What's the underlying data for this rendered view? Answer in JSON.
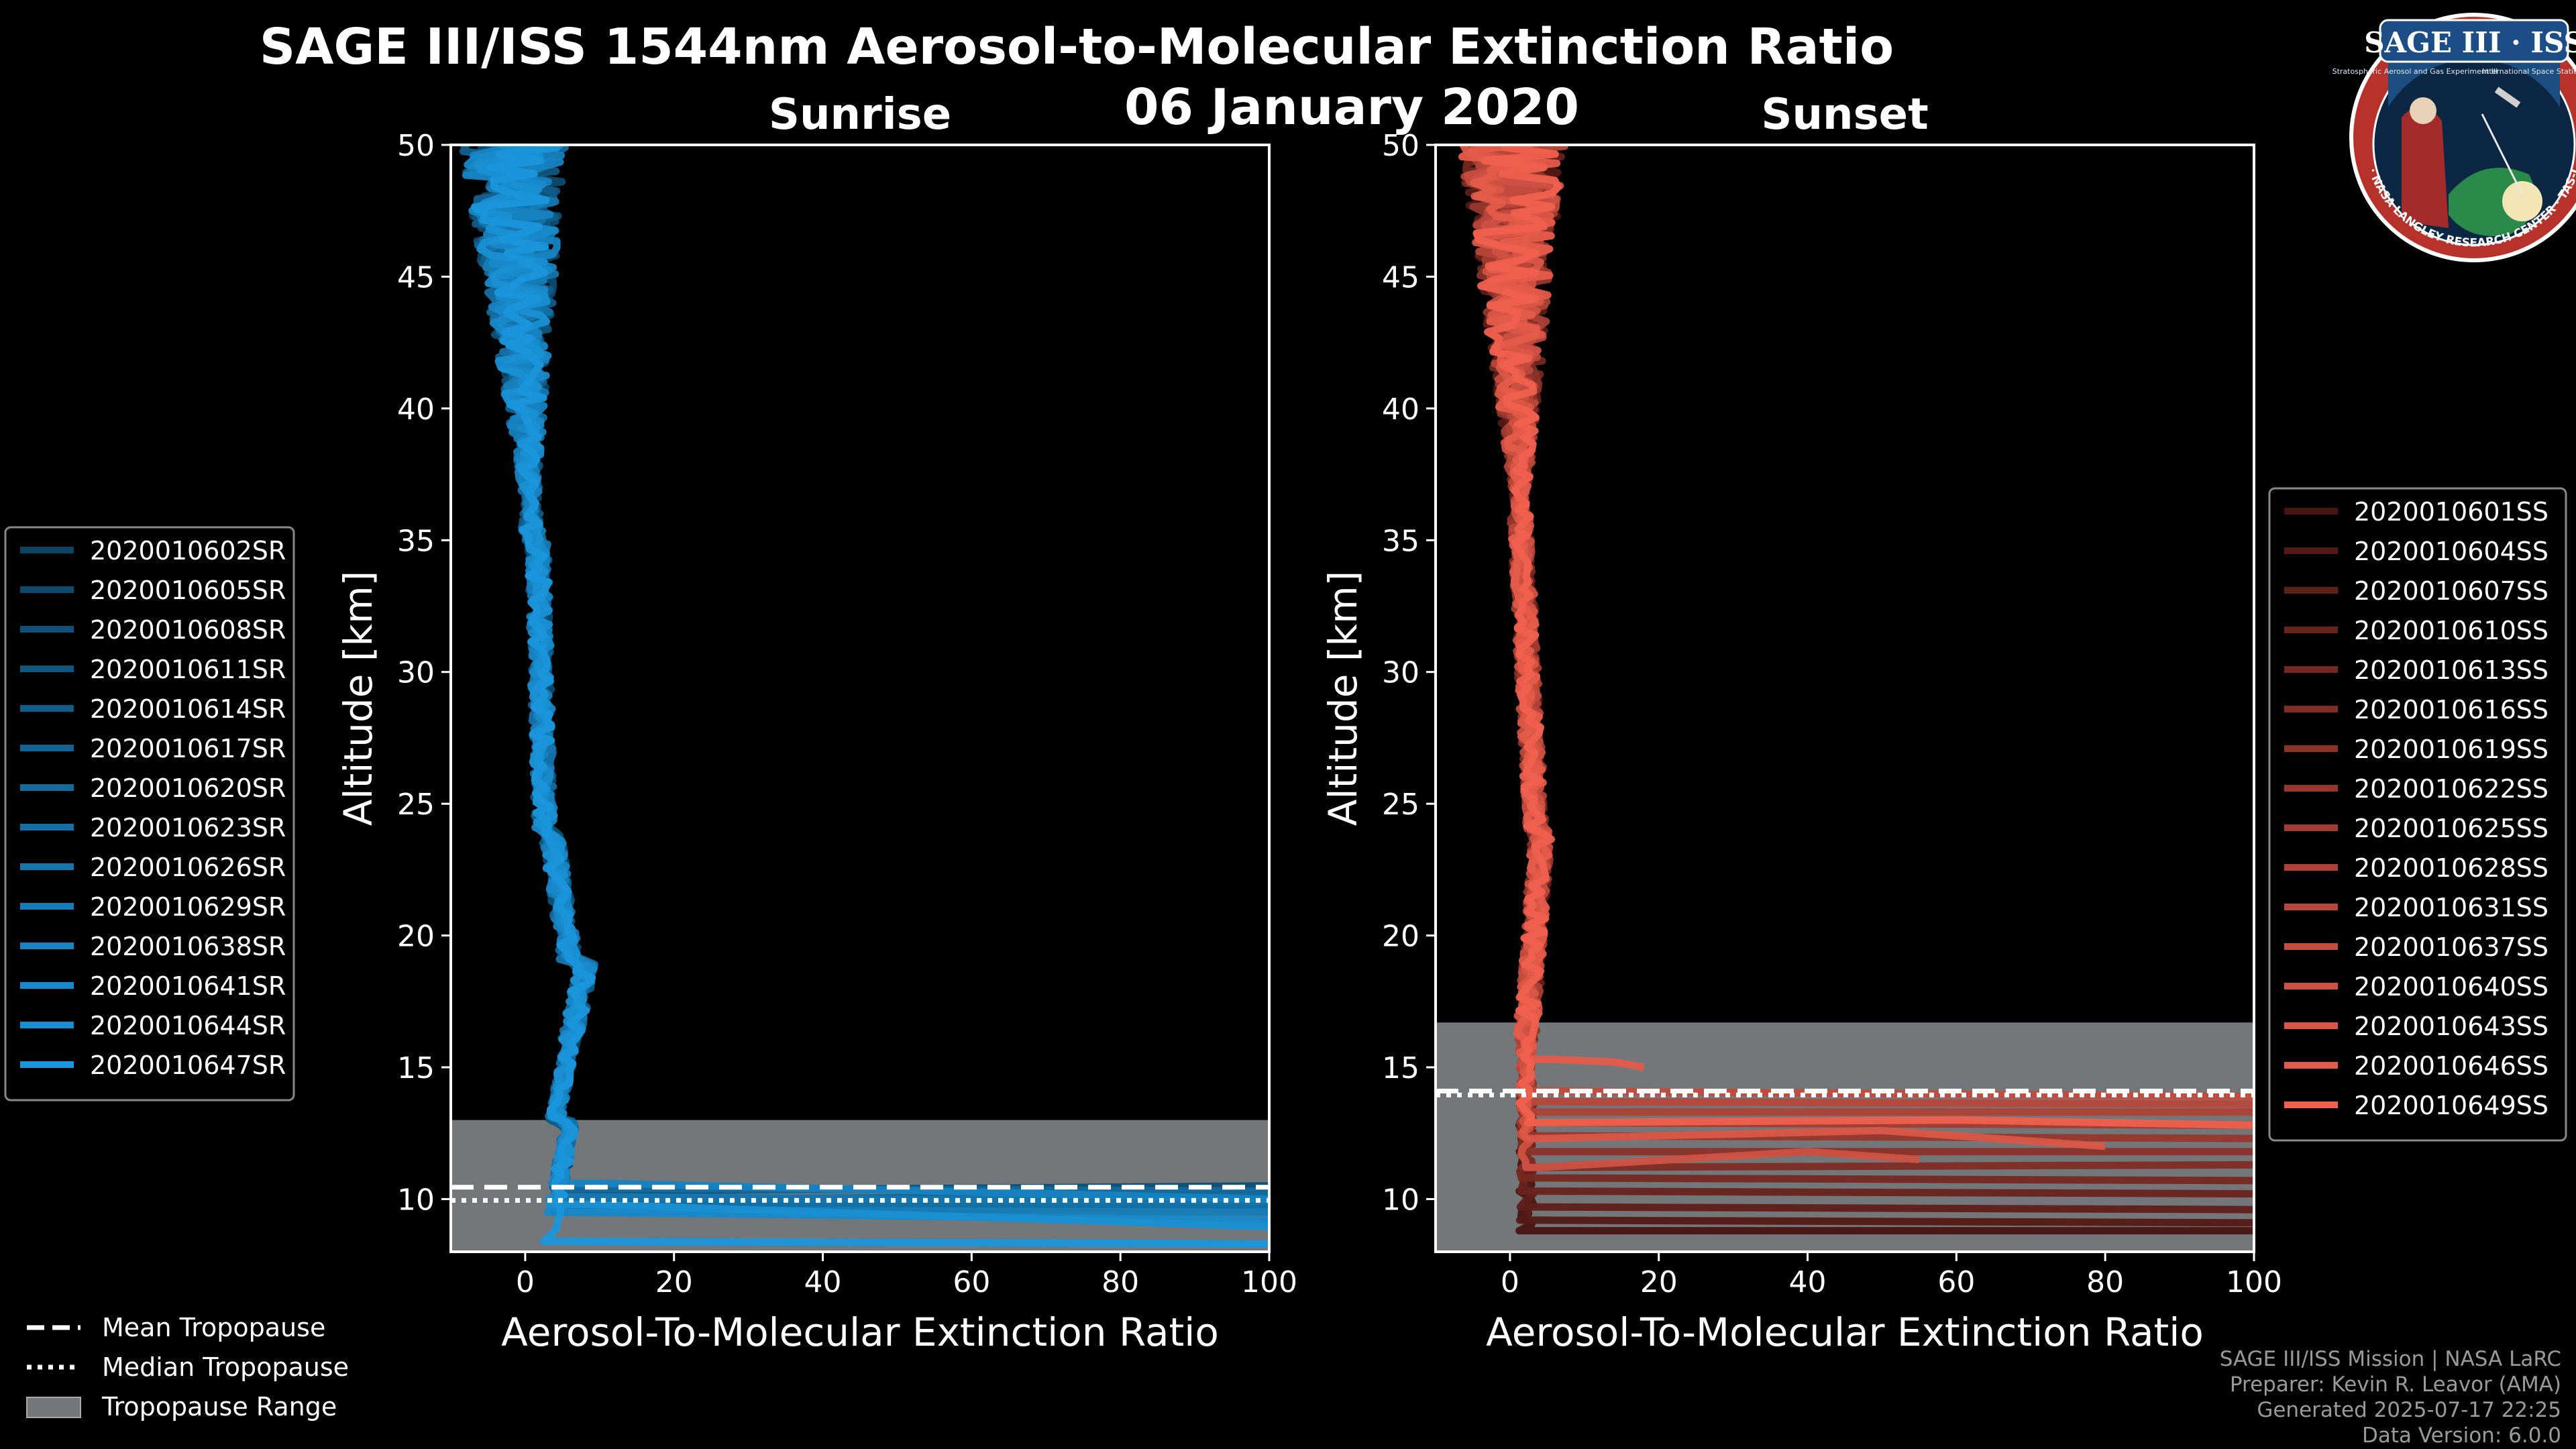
{
  "title": "SAGE III/ISS 1544nm Aerosol-to-Molecular Extinction Ratio",
  "date": "06 January 2020",
  "logo": {
    "title": "SAGE III · ISS",
    "subtitle_left": "Stratospheric Aerosol and Gas Experiment III",
    "subtitle_right": "International Space Station",
    "ring_text": "BALL · NASA LANGLEY RESEARCH CENTER · TAS-I · ESA"
  },
  "credits": [
    "SAGE III/ISS Mission | NASA LaRC",
    "Preparer: Kevin R. Leavor (AMA)",
    "Generated 2025-07-17 22:25",
    "Data Version: 6.0.0"
  ],
  "bottom_legend": [
    {
      "label": "Mean Tropopause",
      "style": "dashed"
    },
    {
      "label": "Median Tropopause",
      "style": "dotted"
    },
    {
      "label": "Tropopause Range",
      "style": "patch"
    }
  ],
  "colors": {
    "background": "#000000",
    "sunrise_dark": "#0a3550",
    "sunrise_bright": "#1a96dc",
    "sunset_dark": "#2a0606",
    "sunset_bright": "#f0604e",
    "tropopause_range": "#74777a"
  },
  "chart_data": [
    {
      "type": "line",
      "subtitle": "Sunrise",
      "xlabel": "Aerosol-To-Molecular Extinction Ratio",
      "ylabel": "Altitude [km]",
      "xlim": [
        -10,
        100
      ],
      "ylim": [
        8,
        50
      ],
      "xticks": [
        0,
        20,
        40,
        60,
        80,
        100
      ],
      "yticks": [
        10,
        15,
        20,
        25,
        30,
        35,
        40,
        45,
        50
      ],
      "tropopause": {
        "mean": 10.45,
        "median": 9.95,
        "range": [
          8.0,
          13.0
        ]
      },
      "series": [
        {
          "name": "2020010602SR",
          "surface": [
            [
              9.8,
              6
            ],
            [
              10.2,
              100
            ]
          ]
        },
        {
          "name": "2020010605SR",
          "surface": [
            [
              9.6,
              5
            ],
            [
              9.9,
              100
            ]
          ]
        },
        {
          "name": "2020010608SR",
          "surface": [
            [
              10.3,
              7
            ],
            [
              10.5,
              100
            ]
          ]
        },
        {
          "name": "2020010611SR",
          "surface": [
            [
              9.5,
              4
            ],
            [
              9.7,
              100
            ]
          ]
        },
        {
          "name": "2020010614SR",
          "surface": [
            [
              10.0,
              8
            ],
            [
              10.1,
              100
            ]
          ]
        },
        {
          "name": "2020010617SR",
          "surface": [
            [
              9.7,
              6
            ],
            [
              9.8,
              100
            ]
          ]
        },
        {
          "name": "2020010620SR",
          "surface": [
            [
              10.4,
              9
            ],
            [
              10.3,
              100
            ]
          ]
        },
        {
          "name": "2020010623SR",
          "surface": [
            [
              9.9,
              5
            ],
            [
              9.6,
              100
            ]
          ]
        },
        {
          "name": "2020010626SR",
          "surface": [
            [
              10.1,
              7
            ],
            [
              9.9,
              100
            ]
          ]
        },
        {
          "name": "2020010629SR",
          "surface": [
            [
              9.6,
              6
            ],
            [
              9.5,
              100
            ]
          ]
        },
        {
          "name": "2020010638SR",
          "surface": [
            [
              10.6,
              10
            ],
            [
              10.0,
              100
            ]
          ]
        },
        {
          "name": "2020010641SR",
          "surface": [
            [
              9.5,
              5
            ],
            [
              9.2,
              100
            ]
          ]
        },
        {
          "name": "2020010644SR",
          "surface": [
            [
              9.8,
              8
            ],
            [
              8.95,
              100
            ]
          ]
        },
        {
          "name": "2020010647SR",
          "surface": [
            [
              8.4,
              3
            ],
            [
              8.3,
              100
            ]
          ]
        }
      ]
    },
    {
      "type": "line",
      "subtitle": "Sunset",
      "xlabel": "Aerosol-To-Molecular Extinction Ratio",
      "ylabel": "Altitude [km]",
      "xlim": [
        -10,
        100
      ],
      "ylim": [
        8,
        50
      ],
      "xticks": [
        0,
        20,
        40,
        60,
        80,
        100
      ],
      "yticks": [
        10,
        15,
        20,
        25,
        30,
        35,
        40,
        45,
        50
      ],
      "tropopause": {
        "mean": 14.1,
        "median": 13.95,
        "range": [
          8.0,
          16.7
        ]
      },
      "series": [
        {
          "name": "2020010601SS",
          "surface": [
            [
              8.8,
              4
            ],
            [
              8.8,
              100
            ]
          ]
        },
        {
          "name": "2020010604SS",
          "surface": [
            [
              9.2,
              3
            ],
            [
              9.1,
              100
            ]
          ]
        },
        {
          "name": "2020010607SS",
          "surface": [
            [
              9.7,
              5
            ],
            [
              9.6,
              100
            ]
          ]
        },
        {
          "name": "2020010610SS",
          "surface": [
            [
              10.3,
              4
            ],
            [
              10.2,
              100
            ]
          ]
        },
        {
          "name": "2020010613SS",
          "surface": [
            [
              10.8,
              6
            ],
            [
              10.7,
              100
            ]
          ]
        },
        {
          "name": "2020010616SS",
          "surface": [
            [
              11.2,
              5
            ],
            [
              11.3,
              100
            ]
          ]
        },
        {
          "name": "2020010619SS",
          "surface": [
            [
              11.8,
              4
            ],
            [
              11.8,
              100
            ]
          ]
        },
        {
          "name": "2020010622SS",
          "surface": [
            [
              12.4,
              6
            ],
            [
              12.3,
              100
            ]
          ]
        },
        {
          "name": "2020010625SS",
          "surface": [
            [
              12.9,
              5
            ],
            [
              12.8,
              100
            ]
          ]
        },
        {
          "name": "2020010628SS",
          "surface": [
            [
              13.3,
              4
            ],
            [
              13.3,
              100
            ]
          ]
        },
        {
          "name": "2020010631SS",
          "surface": [
            [
              13.7,
              6
            ],
            [
              13.6,
              100
            ]
          ]
        },
        {
          "name": "2020010637SS",
          "surface": [
            [
              14.1,
              5
            ],
            [
              13.9,
              100
            ]
          ]
        },
        {
          "name": "2020010640SS",
          "surface": [
            [
              11.2,
              4
            ],
            [
              11.8,
              40
            ],
            [
              11.5,
              55
            ]
          ]
        },
        {
          "name": "2020010643SS",
          "surface": [
            [
              12.3,
              5
            ],
            [
              12.6,
              50
            ],
            [
              12.0,
              80
            ]
          ]
        },
        {
          "name": "2020010646SS",
          "surface": [
            [
              15.3,
              6
            ],
            [
              15.2,
              14
            ],
            [
              15.0,
              18
            ]
          ]
        },
        {
          "name": "2020010649SS",
          "surface": [
            [
              12.9,
              3
            ],
            [
              13.0,
              60
            ],
            [
              12.8,
              100
            ]
          ]
        }
      ]
    }
  ]
}
